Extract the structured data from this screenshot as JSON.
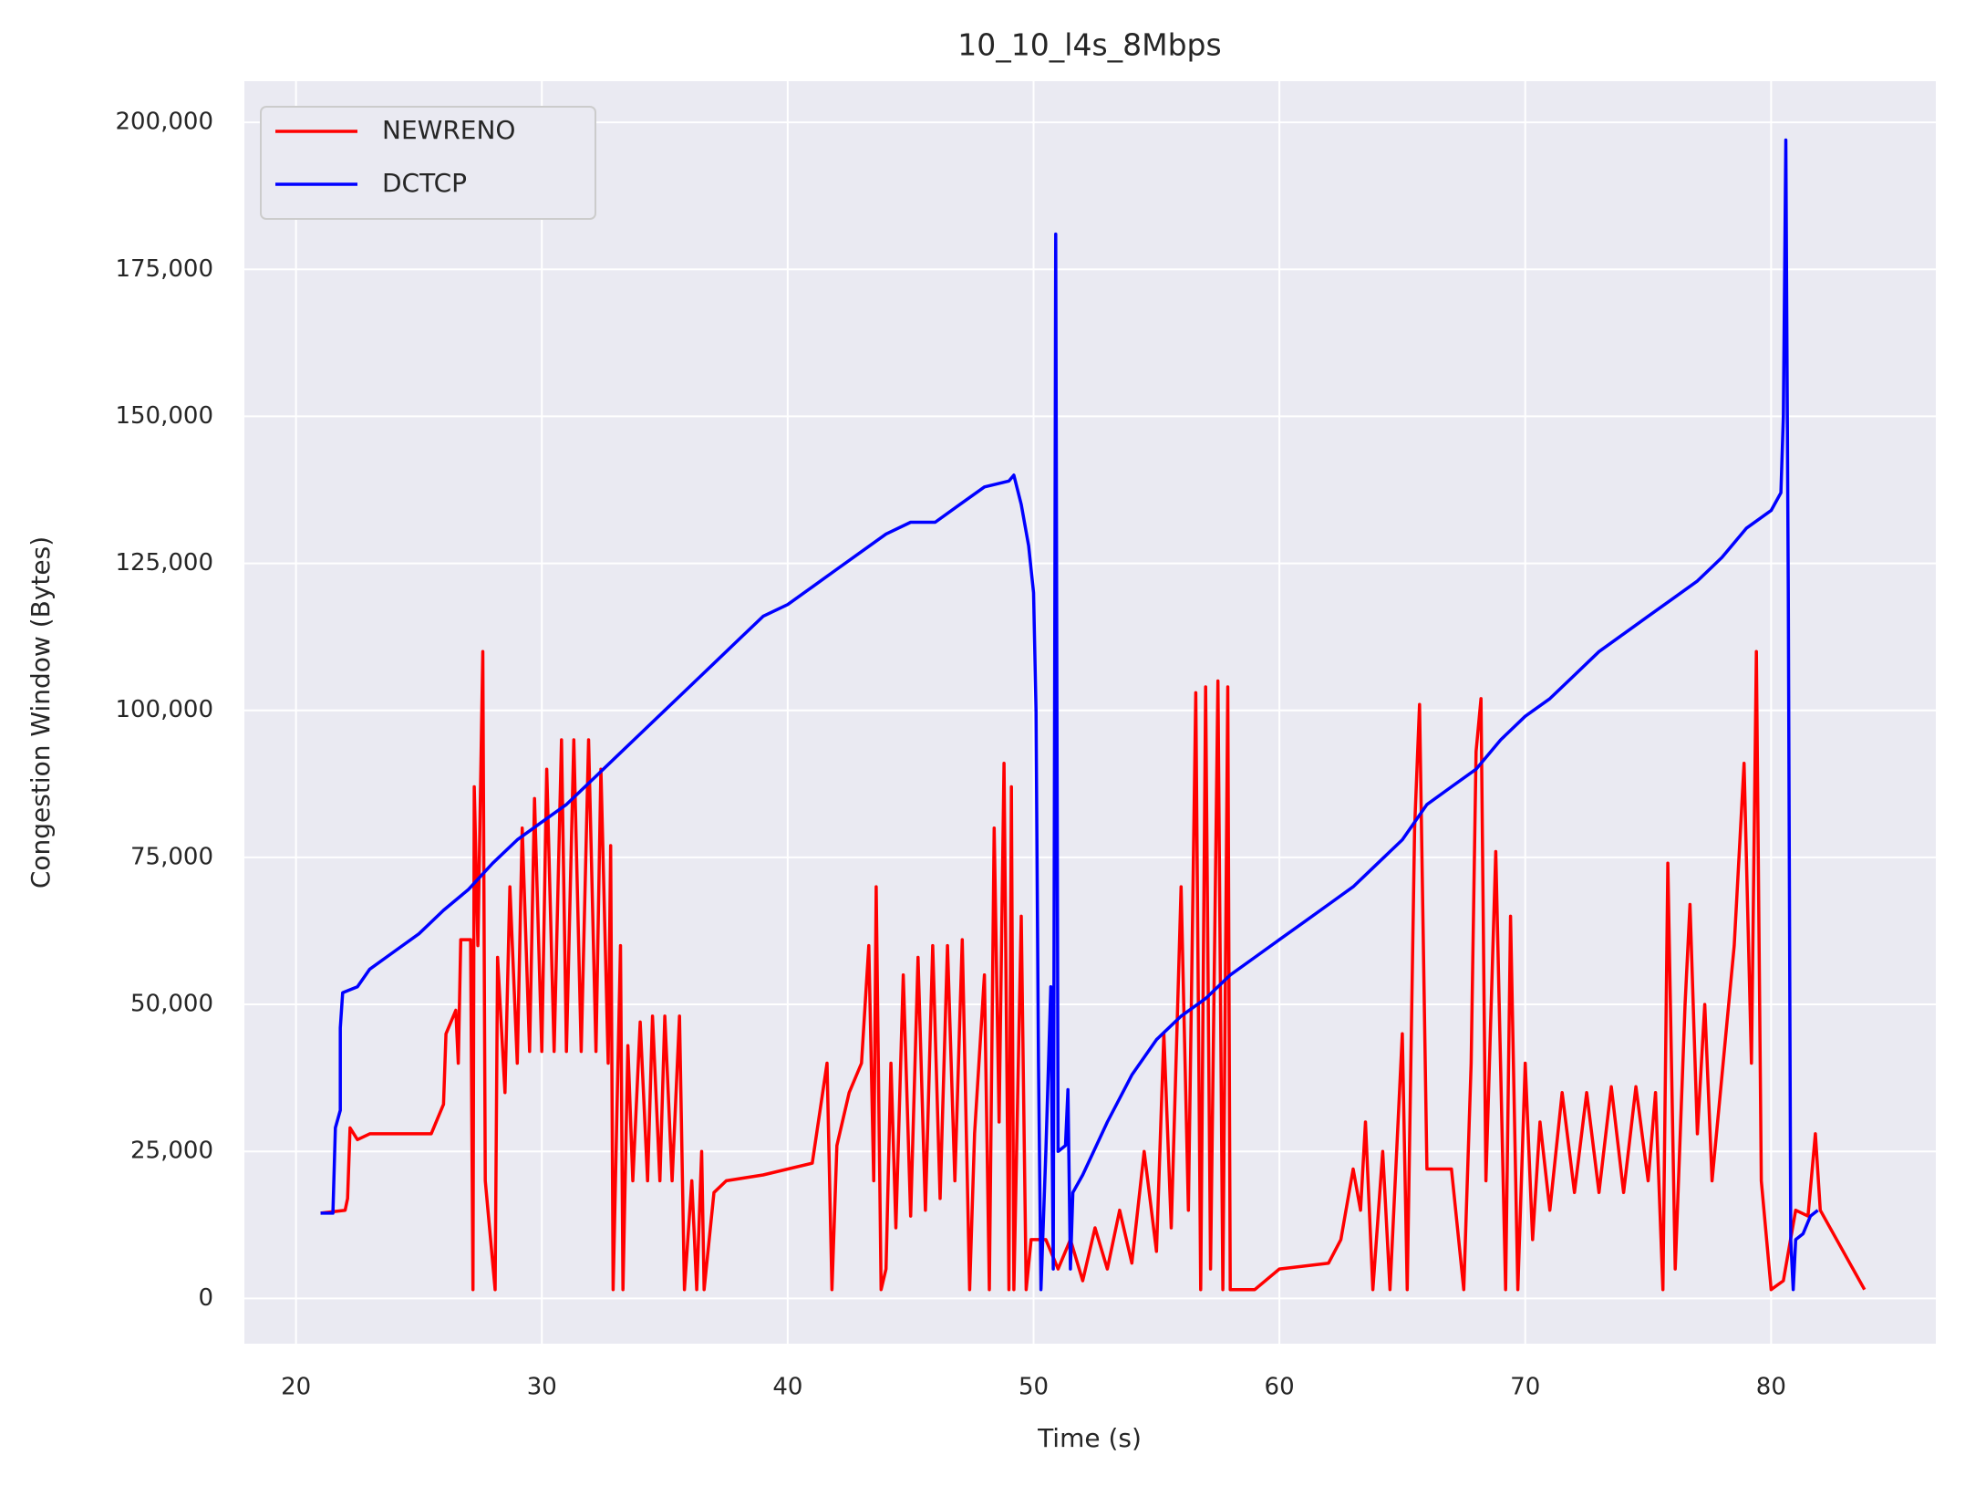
{
  "chart_data": {
    "type": "line",
    "title": "10_10_l4s_8Mbps",
    "xlabel": "Time (s)",
    "ylabel": "Congestion Window (Bytes)",
    "xlim": [
      17.9,
      86.7
    ],
    "xticks": [
      20,
      30,
      40,
      50,
      60,
      70,
      80
    ],
    "ylim": [
      -7700,
      207000
    ],
    "yticks": [
      0,
      {
        "value": 25000,
        "label": "25,000"
      },
      {
        "value": 50000,
        "label": "50,000"
      },
      {
        "value": 75000,
        "label": "75,000"
      },
      {
        "value": 100000,
        "label": "100,000"
      },
      {
        "value": 125000,
        "label": "125,000"
      },
      {
        "value": 150000,
        "label": "150,000"
      },
      {
        "value": 175000,
        "label": "175,000"
      },
      {
        "value": 200000,
        "label": "200,000"
      }
    ],
    "grid": true,
    "legend": "upper left",
    "series": [
      {
        "name": "NEWRENO",
        "color": "#ff0000",
        "x": [
          21,
          22,
          22.1,
          22.2,
          22.5,
          23,
          25.5,
          26,
          26.1,
          26.5,
          26.6,
          26.7,
          27.1,
          27.2,
          27.25,
          27.4,
          27.6,
          27.7,
          28.1,
          28.2,
          28.5,
          28.7,
          29,
          29.2,
          29.5,
          29.7,
          30,
          30.2,
          30.5,
          30.8,
          31,
          31.3,
          31.6,
          31.9,
          32.2,
          32.4,
          32.7,
          32.8,
          32.9,
          33.2,
          33.3,
          33.5,
          33.7,
          34,
          34.3,
          34.5,
          34.8,
          35,
          35.3,
          35.6,
          35.8,
          36.1,
          36.3,
          36.5,
          36.6,
          37,
          37.5,
          39,
          41,
          41.6,
          41.8,
          42,
          42.5,
          43,
          43.3,
          43.5,
          43.6,
          43.8,
          44,
          44.2,
          44.4,
          44.7,
          45,
          45.3,
          45.6,
          45.9,
          46.2,
          46.5,
          46.8,
          47.1,
          47.4,
          47.6,
          48,
          48.2,
          48.4,
          48.6,
          48.8,
          49,
          49.1,
          49.2,
          49.5,
          49.7,
          49.9,
          50.5,
          51,
          51.5,
          52,
          52.5,
          53,
          53.5,
          54,
          54.5,
          55,
          55.3,
          55.6,
          56,
          56.3,
          56.6,
          56.8,
          57,
          57.2,
          57.5,
          57.7,
          57.9,
          58,
          59,
          60,
          62,
          62.5,
          63,
          63.3,
          63.5,
          63.8,
          64.2,
          64.5,
          65,
          65.2,
          65.5,
          65.7,
          66,
          67,
          67.5,
          67.8,
          68,
          68.2,
          68.4,
          68.8,
          69.2,
          69.4,
          69.7,
          70,
          70.3,
          70.6,
          71,
          71.5,
          72,
          72.5,
          73,
          73.5,
          74,
          74.5,
          75,
          75.3,
          75.6,
          75.8,
          76.1,
          76.5,
          76.7,
          77,
          77.3,
          77.6,
          78.5,
          78.9,
          79.2,
          79.4,
          79.6,
          80,
          80.5,
          81,
          81.5,
          81.8,
          82,
          83.8
        ],
        "values": [
          14500,
          15000,
          17000,
          29000,
          27000,
          28000,
          28000,
          33000,
          45000,
          49000,
          40000,
          61000,
          61000,
          1500,
          87000,
          60000,
          110000,
          20000,
          1500,
          58000,
          35000,
          70000,
          40000,
          80000,
          42000,
          85000,
          42000,
          90000,
          42000,
          95000,
          42000,
          95000,
          42000,
          95000,
          42000,
          90000,
          40000,
          77000,
          1500,
          60000,
          1500,
          43000,
          20000,
          47000,
          20000,
          48000,
          20000,
          48000,
          20000,
          48000,
          1500,
          20000,
          1500,
          25000,
          1500,
          18000,
          20000,
          21000,
          23000,
          40000,
          1500,
          26000,
          35000,
          40000,
          60000,
          20000,
          70000,
          1500,
          5000,
          40000,
          12000,
          55000,
          14000,
          58000,
          15000,
          60000,
          17000,
          60000,
          20000,
          61000,
          1500,
          28000,
          55000,
          1500,
          80000,
          30000,
          91000,
          1500,
          87000,
          1500,
          65000,
          1500,
          10000,
          10000,
          5000,
          10000,
          3000,
          12000,
          5000,
          15000,
          6000,
          25000,
          8000,
          45000,
          12000,
          70000,
          15000,
          103000,
          1500,
          104000,
          5000,
          105000,
          1500,
          104000,
          1500,
          1500,
          5000,
          6000,
          10000,
          22000,
          15000,
          30000,
          1500,
          25000,
          1500,
          45000,
          1500,
          80000,
          101000,
          22000,
          22000,
          1500,
          40000,
          93000,
          102000,
          20000,
          76000,
          1500,
          65000,
          1500,
          40000,
          10000,
          30000,
          15000,
          35000,
          18000,
          35000,
          18000,
          36000,
          18000,
          36000,
          20000,
          35000,
          1500,
          74000,
          5000,
          50000,
          67000,
          28000,
          50000,
          20000,
          60000,
          91000,
          40000,
          110000,
          20000,
          1500,
          3000,
          15000,
          14000,
          28000,
          15000,
          1500
        ]
      },
      {
        "name": "DCTCP",
        "color": "#0000ff",
        "x": [
          21,
          21.5,
          21.6,
          21.8,
          21.8,
          21.9,
          22.5,
          23,
          24,
          25,
          26,
          27,
          28,
          29,
          30,
          31,
          32,
          33,
          34,
          35,
          36,
          37,
          38,
          39,
          40,
          41,
          42,
          43,
          44,
          45,
          46,
          47,
          48,
          49,
          49.2,
          49.5,
          49.8,
          50,
          50.1,
          50.2,
          50.3,
          50.5,
          50.7,
          50.8,
          50.9,
          51,
          51.3,
          51.4,
          51.5,
          51.6,
          52,
          53,
          54,
          55,
          56,
          57,
          58,
          59,
          60,
          61,
          62,
          63,
          64,
          65,
          66,
          67,
          68,
          69,
          70,
          71,
          72,
          73,
          74,
          75,
          76,
          77,
          78,
          79,
          80,
          80.4,
          80.5,
          80.6,
          80.7,
          80.8,
          80.9,
          81,
          81.3,
          81.6,
          81.9
        ],
        "values": [
          14500,
          14500,
          29000,
          32000,
          46000,
          52000,
          53000,
          56000,
          59000,
          62000,
          66000,
          69500,
          74000,
          78000,
          81000,
          84000,
          88000,
          92000,
          96000,
          100000,
          104000,
          108000,
          112000,
          116000,
          118000,
          121000,
          124000,
          127000,
          130000,
          132000,
          132000,
          135000,
          138000,
          139000,
          140000,
          135000,
          128000,
          120000,
          100000,
          40000,
          1500,
          25000,
          53000,
          5000,
          181000,
          25000,
          26000,
          35500,
          5000,
          18000,
          21000,
          30000,
          38000,
          44000,
          48000,
          51000,
          55000,
          58000,
          61000,
          64000,
          67000,
          70000,
          74000,
          78000,
          84000,
          87000,
          90000,
          95000,
          99000,
          102000,
          106000,
          110000,
          113000,
          116000,
          119000,
          122000,
          126000,
          131000,
          134000,
          137000,
          150000,
          197000,
          120000,
          10000,
          1500,
          10000,
          11000,
          14000,
          15000
        ]
      }
    ]
  }
}
